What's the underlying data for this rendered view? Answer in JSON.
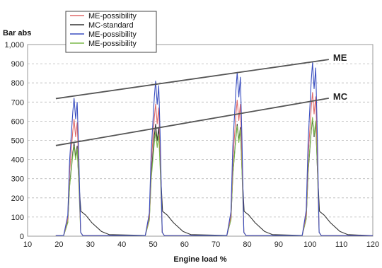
{
  "chart_data": {
    "type": "line",
    "ylabel": "Bar abs",
    "xlabel": "Engine load %",
    "xlim": [
      10,
      120
    ],
    "ylim": [
      0,
      1000
    ],
    "x_ticks": [
      "10",
      "20",
      "30",
      "40",
      "50",
      "60",
      "70",
      "80",
      "90",
      "100",
      "110",
      "120"
    ],
    "y_ticks": [
      "0",
      "100",
      "200",
      "300",
      "400",
      "500",
      "600",
      "700",
      "800",
      "900",
      "1,000"
    ],
    "grid": "horizontal dashed",
    "legend_position": "top-left",
    "series": [
      {
        "name": "ME-possibility",
        "color": "#e06a6a",
        "peaks": [
          [
            25,
            610
          ],
          [
            51,
            690
          ],
          [
            77,
            710
          ],
          [
            101,
            750
          ]
        ],
        "tail": false
      },
      {
        "name": "MC-standard",
        "color": "#333333",
        "peaks": [
          [
            25,
            485
          ],
          [
            51,
            585
          ],
          [
            77,
            585
          ],
          [
            101,
            610
          ]
        ],
        "tail": true
      },
      {
        "name": "ME-possibility",
        "color": "#3a4fc0",
        "peaks": [
          [
            25,
            720
          ],
          [
            51,
            810
          ],
          [
            77,
            855
          ],
          [
            101,
            905
          ]
        ],
        "tail": false
      },
      {
        "name": "ME-possibility",
        "color": "#7ab84a",
        "peaks": [
          [
            25,
            470
          ],
          [
            51,
            545
          ],
          [
            77,
            575
          ],
          [
            101,
            620
          ]
        ],
        "tail": false
      }
    ],
    "trend_lines": [
      {
        "label": "ME",
        "from": [
          19,
          718
        ],
        "to": [
          106,
          922
        ]
      },
      {
        "label": "MC",
        "from": [
          19,
          473
        ],
        "to": [
          106,
          720
        ]
      }
    ]
  }
}
